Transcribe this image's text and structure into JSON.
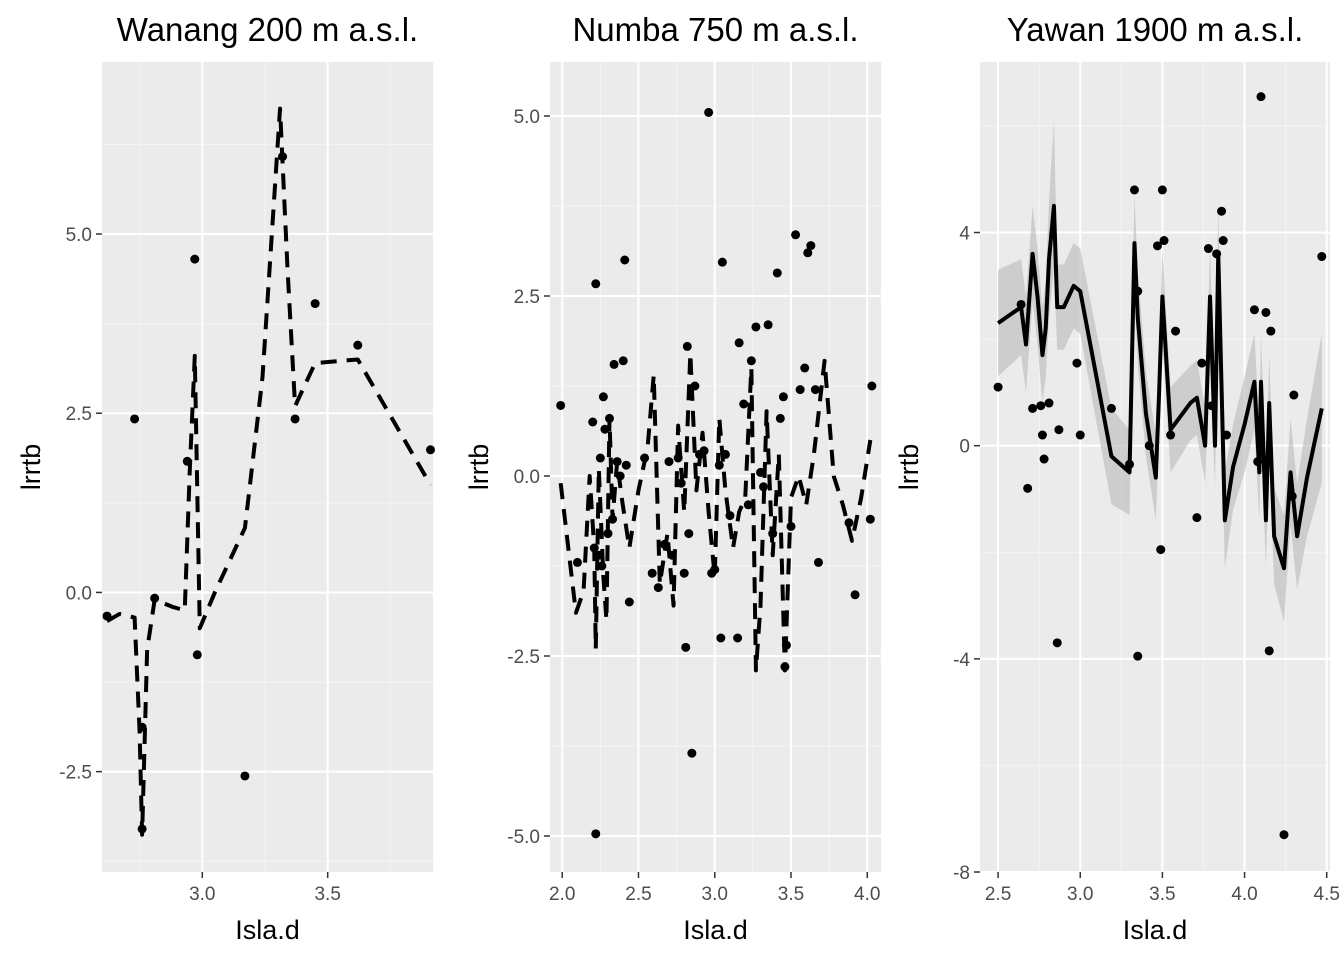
{
  "chart_data": [
    {
      "type": "scatter",
      "title": "Wanang 200 m a.s.l.",
      "xlabel": "Isla.d",
      "ylabel": "lrrtb",
      "xlim": [
        2.6,
        3.92
      ],
      "ylim": [
        -3.9,
        7.4
      ],
      "xticks": [
        3.0,
        3.5
      ],
      "xtick_labels": [
        "3.0",
        "3.5"
      ],
      "yticks": [
        -2.5,
        0.0,
        2.5,
        5.0
      ],
      "ytick_labels": [
        "-2.5",
        "0.0",
        "2.5",
        "5.0"
      ],
      "grid": true,
      "line_style": "dashed",
      "ribbon": false,
      "points": [
        [
          2.62,
          -0.33
        ],
        [
          2.73,
          2.42
        ],
        [
          2.76,
          -1.88
        ],
        [
          2.76,
          -3.3
        ],
        [
          2.81,
          -0.08
        ],
        [
          2.94,
          1.83
        ],
        [
          2.97,
          4.65
        ],
        [
          2.98,
          -0.87
        ],
        [
          3.17,
          -2.56
        ],
        [
          3.32,
          6.08
        ],
        [
          3.37,
          2.42
        ],
        [
          3.45,
          4.03
        ],
        [
          3.62,
          3.45
        ],
        [
          3.91,
          1.99
        ]
      ],
      "fit_line": [
        [
          2.62,
          -0.4
        ],
        [
          2.67,
          -0.3
        ],
        [
          2.73,
          -0.35
        ],
        [
          2.75,
          -1.95
        ],
        [
          2.76,
          -3.38
        ],
        [
          2.78,
          -0.8
        ],
        [
          2.81,
          -0.1
        ],
        [
          2.88,
          -0.2
        ],
        [
          2.93,
          -0.25
        ],
        [
          2.95,
          1.7
        ],
        [
          2.97,
          3.3
        ],
        [
          2.99,
          -0.5
        ],
        [
          3.05,
          0.0
        ],
        [
          3.17,
          0.9
        ],
        [
          3.24,
          3.0
        ],
        [
          3.31,
          6.75
        ],
        [
          3.34,
          4.5
        ],
        [
          3.37,
          2.6
        ],
        [
          3.45,
          3.2
        ],
        [
          3.62,
          3.25
        ],
        [
          3.91,
          1.5
        ]
      ]
    },
    {
      "type": "scatter",
      "title": "Numba 750 m a.s.l.",
      "xlabel": "Isla.d",
      "ylabel": "lrrtb",
      "xlim": [
        1.92,
        4.09
      ],
      "ylim": [
        -5.5,
        5.75
      ],
      "xticks": [
        2.0,
        2.5,
        3.0,
        3.5,
        4.0
      ],
      "xtick_labels": [
        "2.0",
        "2.5",
        "3.0",
        "3.5",
        "4.0"
      ],
      "yticks": [
        -5.0,
        -2.5,
        0.0,
        2.5,
        5.0
      ],
      "ytick_labels": [
        "-5.0",
        "-2.5",
        "0.0",
        "2.5",
        "5.0"
      ],
      "grid": true,
      "line_style": "dashed",
      "ribbon": false,
      "points": [
        [
          1.99,
          0.98
        ],
        [
          2.1,
          -1.2
        ],
        [
          2.2,
          0.75
        ],
        [
          2.21,
          -1.0
        ],
        [
          2.22,
          2.67
        ],
        [
          2.22,
          -4.97
        ],
        [
          2.24,
          -1.1
        ],
        [
          2.25,
          0.25
        ],
        [
          2.26,
          -1.25
        ],
        [
          2.27,
          1.1
        ],
        [
          2.28,
          0.65
        ],
        [
          2.3,
          -0.8
        ],
        [
          2.31,
          0.8
        ],
        [
          2.33,
          -0.6
        ],
        [
          2.34,
          1.55
        ],
        [
          2.36,
          0.2
        ],
        [
          2.38,
          0.0
        ],
        [
          2.4,
          1.6
        ],
        [
          2.41,
          3.0
        ],
        [
          2.42,
          0.15
        ],
        [
          2.44,
          -1.75
        ],
        [
          2.54,
          0.25
        ],
        [
          2.59,
          -1.35
        ],
        [
          2.63,
          -1.55
        ],
        [
          2.67,
          -0.95
        ],
        [
          2.7,
          0.2
        ],
        [
          2.72,
          -1.1
        ],
        [
          2.76,
          0.25
        ],
        [
          2.78,
          -0.1
        ],
        [
          2.8,
          -1.35
        ],
        [
          2.81,
          -2.38
        ],
        [
          2.82,
          1.8
        ],
        [
          2.83,
          -0.8
        ],
        [
          2.85,
          -3.85
        ],
        [
          2.87,
          1.25
        ],
        [
          2.9,
          0.3
        ],
        [
          2.93,
          0.35
        ],
        [
          2.96,
          5.05
        ],
        [
          2.98,
          -1.35
        ],
        [
          3.0,
          -1.3
        ],
        [
          3.03,
          0.15
        ],
        [
          3.04,
          -2.25
        ],
        [
          3.05,
          2.97
        ],
        [
          3.07,
          0.3
        ],
        [
          3.1,
          -0.55
        ],
        [
          3.15,
          -2.25
        ],
        [
          3.16,
          1.85
        ],
        [
          3.19,
          1.0
        ],
        [
          3.22,
          -0.4
        ],
        [
          3.24,
          1.6
        ],
        [
          3.27,
          2.07
        ],
        [
          3.3,
          0.05
        ],
        [
          3.32,
          -0.15
        ],
        [
          3.35,
          2.1
        ],
        [
          3.38,
          -0.8
        ],
        [
          3.41,
          2.82
        ],
        [
          3.43,
          0.8
        ],
        [
          3.45,
          1.1
        ],
        [
          3.46,
          -2.65
        ],
        [
          3.47,
          -2.35
        ],
        [
          3.5,
          -0.7
        ],
        [
          3.53,
          3.35
        ],
        [
          3.56,
          1.2
        ],
        [
          3.59,
          1.5
        ],
        [
          3.61,
          3.1
        ],
        [
          3.63,
          3.2
        ],
        [
          3.66,
          1.2
        ],
        [
          3.68,
          -1.2
        ],
        [
          3.88,
          -0.65
        ],
        [
          3.92,
          -1.65
        ],
        [
          4.02,
          -0.6
        ],
        [
          4.03,
          1.25
        ]
      ],
      "fit_line": [
        [
          1.99,
          -0.1
        ],
        [
          2.04,
          -1.0
        ],
        [
          2.09,
          -1.9
        ],
        [
          2.14,
          -1.6
        ],
        [
          2.18,
          0.0
        ],
        [
          2.21,
          -1.0
        ],
        [
          2.22,
          -2.4
        ],
        [
          2.24,
          0.1
        ],
        [
          2.27,
          -1.4
        ],
        [
          2.29,
          -2.0
        ],
        [
          2.31,
          0.8
        ],
        [
          2.33,
          -0.6
        ],
        [
          2.36,
          0.2
        ],
        [
          2.39,
          -0.3
        ],
        [
          2.44,
          -1.0
        ],
        [
          2.5,
          -0.2
        ],
        [
          2.56,
          0.4
        ],
        [
          2.6,
          1.4
        ],
        [
          2.64,
          -1.5
        ],
        [
          2.69,
          -0.8
        ],
        [
          2.73,
          -1.8
        ],
        [
          2.76,
          0.7
        ],
        [
          2.8,
          -0.5
        ],
        [
          2.84,
          1.7
        ],
        [
          2.88,
          -0.2
        ],
        [
          2.92,
          0.6
        ],
        [
          2.96,
          -0.5
        ],
        [
          3.0,
          -1.4
        ],
        [
          3.03,
          0.8
        ],
        [
          3.07,
          -0.2
        ],
        [
          3.12,
          -1.0
        ],
        [
          3.16,
          -0.5
        ],
        [
          3.2,
          -0.3
        ],
        [
          3.24,
          1.5
        ],
        [
          3.27,
          -2.7
        ],
        [
          3.3,
          -1.8
        ],
        [
          3.34,
          0.9
        ],
        [
          3.38,
          -1.1
        ],
        [
          3.42,
          0.3
        ],
        [
          3.46,
          -2.7
        ],
        [
          3.5,
          -0.3
        ],
        [
          3.55,
          0.0
        ],
        [
          3.6,
          -0.4
        ],
        [
          3.65,
          0.3
        ],
        [
          3.72,
          1.6
        ],
        [
          3.78,
          0.0
        ],
        [
          3.84,
          -0.4
        ],
        [
          3.9,
          -0.9
        ],
        [
          3.96,
          -0.3
        ],
        [
          4.02,
          0.5
        ]
      ]
    },
    {
      "type": "scatter",
      "title": "Yawan 1900 m a.s.l.",
      "xlabel": "Isla.d",
      "ylabel": "lrrtb",
      "xlim": [
        2.39,
        4.52
      ],
      "ylim": [
        -8.0,
        7.2
      ],
      "xticks": [
        2.5,
        3.0,
        3.5,
        4.0,
        4.5
      ],
      "xtick_labels": [
        "2.5",
        "3.0",
        "3.5",
        "4.0",
        "4.5"
      ],
      "yticks": [
        -8,
        -4,
        0,
        4
      ],
      "ytick_labels": [
        "-8",
        "-4",
        "0",
        "4"
      ],
      "grid": true,
      "line_style": "solid",
      "ribbon": true,
      "points": [
        [
          2.5,
          1.1
        ],
        [
          2.64,
          2.65
        ],
        [
          2.68,
          -0.8
        ],
        [
          2.71,
          0.7
        ],
        [
          2.76,
          0.75
        ],
        [
          2.77,
          0.2
        ],
        [
          2.78,
          -0.25
        ],
        [
          2.81,
          0.8
        ],
        [
          2.86,
          -3.7
        ],
        [
          2.87,
          0.3
        ],
        [
          2.98,
          1.55
        ],
        [
          3.0,
          0.2
        ],
        [
          3.19,
          0.7
        ],
        [
          3.3,
          -0.35
        ],
        [
          3.33,
          4.8
        ],
        [
          3.35,
          -3.95
        ],
        [
          3.35,
          2.9
        ],
        [
          3.42,
          0.0
        ],
        [
          3.47,
          3.75
        ],
        [
          3.49,
          -1.95
        ],
        [
          3.5,
          4.8
        ],
        [
          3.51,
          3.85
        ],
        [
          3.55,
          0.2
        ],
        [
          3.58,
          2.15
        ],
        [
          3.71,
          -1.35
        ],
        [
          3.74,
          1.55
        ],
        [
          3.78,
          3.7
        ],
        [
          3.8,
          0.75
        ],
        [
          3.83,
          3.6
        ],
        [
          3.86,
          4.4
        ],
        [
          3.87,
          3.85
        ],
        [
          3.89,
          0.2
        ],
        [
          4.06,
          2.55
        ],
        [
          4.08,
          -0.3
        ],
        [
          4.1,
          6.55
        ],
        [
          4.13,
          2.5
        ],
        [
          4.15,
          -3.85
        ],
        [
          4.16,
          2.15
        ],
        [
          4.24,
          -7.3
        ],
        [
          4.29,
          -0.95
        ],
        [
          4.3,
          0.95
        ],
        [
          4.47,
          3.55
        ]
      ],
      "fit_line": [
        [
          2.5,
          2.3
        ],
        [
          2.64,
          2.6
        ],
        [
          2.67,
          1.9
        ],
        [
          2.71,
          3.6
        ],
        [
          2.74,
          2.8
        ],
        [
          2.77,
          1.7
        ],
        [
          2.79,
          2.2
        ],
        [
          2.81,
          3.5
        ],
        [
          2.84,
          4.5
        ],
        [
          2.86,
          2.6
        ],
        [
          2.9,
          2.6
        ],
        [
          2.96,
          3.0
        ],
        [
          3.0,
          2.9
        ],
        [
          3.19,
          -0.2
        ],
        [
          3.3,
          -0.5
        ],
        [
          3.33,
          3.8
        ],
        [
          3.35,
          2.4
        ],
        [
          3.4,
          0.6
        ],
        [
          3.46,
          -0.6
        ],
        [
          3.48,
          1.0
        ],
        [
          3.5,
          2.8
        ],
        [
          3.52,
          1.8
        ],
        [
          3.55,
          0.3
        ],
        [
          3.67,
          0.8
        ],
        [
          3.71,
          0.9
        ],
        [
          3.76,
          0.0
        ],
        [
          3.79,
          2.8
        ],
        [
          3.82,
          0.0
        ],
        [
          3.84,
          3.6
        ],
        [
          3.88,
          -1.4
        ],
        [
          3.93,
          -0.4
        ],
        [
          4.0,
          0.4
        ],
        [
          4.06,
          1.2
        ],
        [
          4.09,
          -0.5
        ],
        [
          4.1,
          1.2
        ],
        [
          4.13,
          -1.4
        ],
        [
          4.15,
          0.8
        ],
        [
          4.18,
          -1.7
        ],
        [
          4.24,
          -2.3
        ],
        [
          4.28,
          -0.5
        ],
        [
          4.32,
          -1.7
        ],
        [
          4.38,
          -0.6
        ],
        [
          4.47,
          0.7
        ]
      ],
      "ribbon_band": [
        [
          2.5,
          1.3,
          3.3
        ],
        [
          2.64,
          1.7,
          3.5
        ],
        [
          2.67,
          1.0,
          2.8
        ],
        [
          2.71,
          2.7,
          4.5
        ],
        [
          2.74,
          1.9,
          3.7
        ],
        [
          2.77,
          0.8,
          2.6
        ],
        [
          2.79,
          1.3,
          3.1
        ],
        [
          2.81,
          2.4,
          4.6
        ],
        [
          2.84,
          3.3,
          6.1
        ],
        [
          2.86,
          1.8,
          3.4
        ],
        [
          2.9,
          1.8,
          3.4
        ],
        [
          2.96,
          2.2,
          3.8
        ],
        [
          3.0,
          2.1,
          3.7
        ],
        [
          3.19,
          -1.1,
          0.7
        ],
        [
          3.3,
          -1.3,
          0.3
        ],
        [
          3.33,
          2.9,
          4.7
        ],
        [
          3.35,
          1.5,
          3.3
        ],
        [
          3.4,
          -0.2,
          1.4
        ],
        [
          3.46,
          -1.4,
          0.2
        ],
        [
          3.48,
          0.2,
          1.8
        ],
        [
          3.5,
          1.9,
          3.7
        ],
        [
          3.52,
          1.0,
          2.6
        ],
        [
          3.55,
          -0.5,
          1.1
        ],
        [
          3.67,
          0.1,
          1.5
        ],
        [
          3.71,
          0.2,
          1.6
        ],
        [
          3.76,
          -0.7,
          0.7
        ],
        [
          3.79,
          1.9,
          3.7
        ],
        [
          3.82,
          -0.8,
          0.8
        ],
        [
          3.84,
          2.7,
          4.5
        ],
        [
          3.88,
          -2.3,
          -0.5
        ],
        [
          3.93,
          -1.2,
          0.4
        ],
        [
          4.0,
          -0.5,
          1.3
        ],
        [
          4.06,
          0.3,
          2.1
        ],
        [
          4.09,
          -1.4,
          0.4
        ],
        [
          4.1,
          0.3,
          2.1
        ],
        [
          4.13,
          -2.3,
          -0.5
        ],
        [
          4.15,
          -0.1,
          1.7
        ],
        [
          4.18,
          -2.6,
          -0.8
        ],
        [
          4.24,
          -3.3,
          -1.3
        ],
        [
          4.28,
          -1.5,
          0.5
        ],
        [
          4.32,
          -2.7,
          -0.7
        ],
        [
          4.38,
          -1.7,
          0.5
        ],
        [
          4.47,
          -0.7,
          2.1
        ]
      ]
    }
  ]
}
